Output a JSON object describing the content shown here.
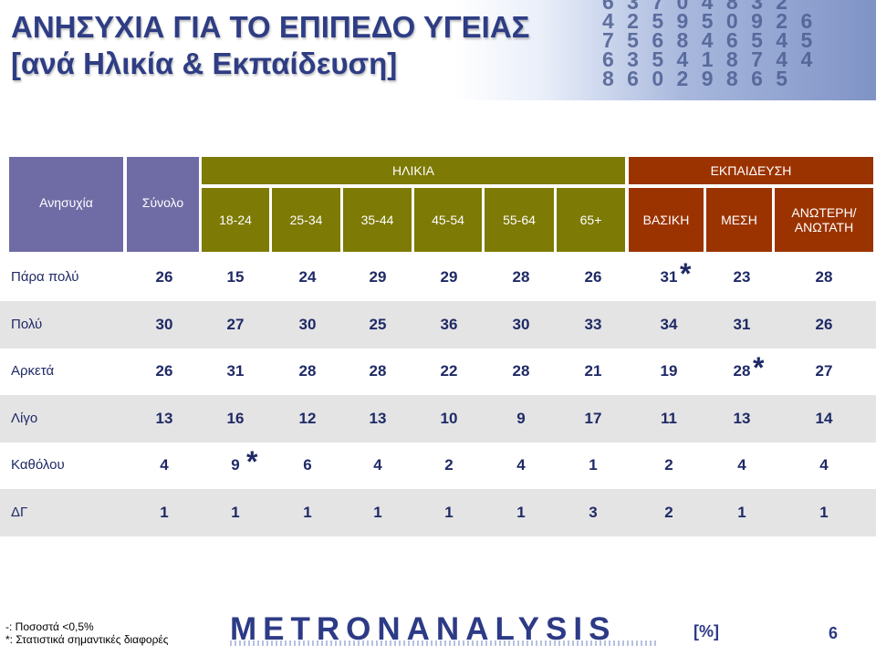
{
  "title": {
    "line1": "ΑΝΗΣΥΧΙΑ ΓΙΑ ΤΟ ΕΠΙΠΕΔΟ ΥΓΕΙΑΣ",
    "line2": "[ανά Ηλικία & Εκπαίδευση]"
  },
  "banner_digits": "6 3 7 0 4 8 3 2\n4 2 5 9 5 0 9 2 6\n7 5 6 8 4 6 5 4 5\n6 3 5 4 1 8 7 4 4\n8 6 0 2 9 8 6 5",
  "colors": {
    "title": "#2e3d84",
    "age": "#7d7a05",
    "edu": "#9b3300",
    "stub": "#6f6ba5",
    "text": "#1f2a66"
  },
  "header": {
    "concern": "Ανησυχία",
    "total": "Σύνολο",
    "age_group": "ΗΛΙΚΙΑ",
    "edu_group": "ΕΚΠΑΙΔΕΥΣΗ",
    "age_cols": [
      "18-24",
      "25-34",
      "35-44",
      "45-54",
      "55-64",
      "65+"
    ],
    "edu_cols": [
      "ΒΑΣΙΚΗ",
      "ΜΕΣΗ",
      "ΑΝΩΤΕΡΗ/\nΑΝΩΤΑΤΗ"
    ]
  },
  "rows": [
    {
      "label": "Πάρα πολύ",
      "values": [
        "26",
        "15",
        "24",
        "29",
        "29",
        "28",
        "26",
        "31",
        "23",
        "28"
      ],
      "stars": [
        false,
        false,
        false,
        false,
        false,
        false,
        false,
        true,
        false,
        false
      ]
    },
    {
      "label": "Πολύ",
      "values": [
        "30",
        "27",
        "30",
        "25",
        "36",
        "30",
        "33",
        "34",
        "31",
        "26"
      ],
      "stars": [
        false,
        false,
        false,
        false,
        false,
        false,
        false,
        false,
        false,
        false
      ]
    },
    {
      "label": "Αρκετά",
      "values": [
        "26",
        "31",
        "28",
        "28",
        "22",
        "28",
        "21",
        "19",
        "28",
        "27"
      ],
      "stars": [
        false,
        false,
        false,
        false,
        false,
        false,
        false,
        false,
        true,
        false
      ]
    },
    {
      "label": "Λίγο",
      "values": [
        "13",
        "16",
        "12",
        "13",
        "10",
        "9",
        "17",
        "11",
        "13",
        "14"
      ],
      "stars": [
        false,
        false,
        false,
        false,
        false,
        false,
        false,
        false,
        false,
        false
      ]
    },
    {
      "label": "Καθόλου",
      "values": [
        "4",
        "9",
        "6",
        "4",
        "2",
        "4",
        "1",
        "2",
        "4",
        "4"
      ],
      "stars": [
        false,
        true,
        false,
        false,
        false,
        false,
        false,
        false,
        false,
        false
      ]
    },
    {
      "label": "ΔΓ",
      "values": [
        "1",
        "1",
        "1",
        "1",
        "1",
        "1",
        "3",
        "2",
        "1",
        "1"
      ],
      "stars": [
        false,
        false,
        false,
        false,
        false,
        false,
        false,
        false,
        false,
        false
      ]
    }
  ],
  "star_symbol": "*",
  "footer": {
    "note1": "-: Ποσοστά <0,5%",
    "note2": "*: Στατιστικά σημαντικές διαφορές",
    "logo": "METRONANALYSIS",
    "unit": "[%]",
    "page": "6"
  }
}
